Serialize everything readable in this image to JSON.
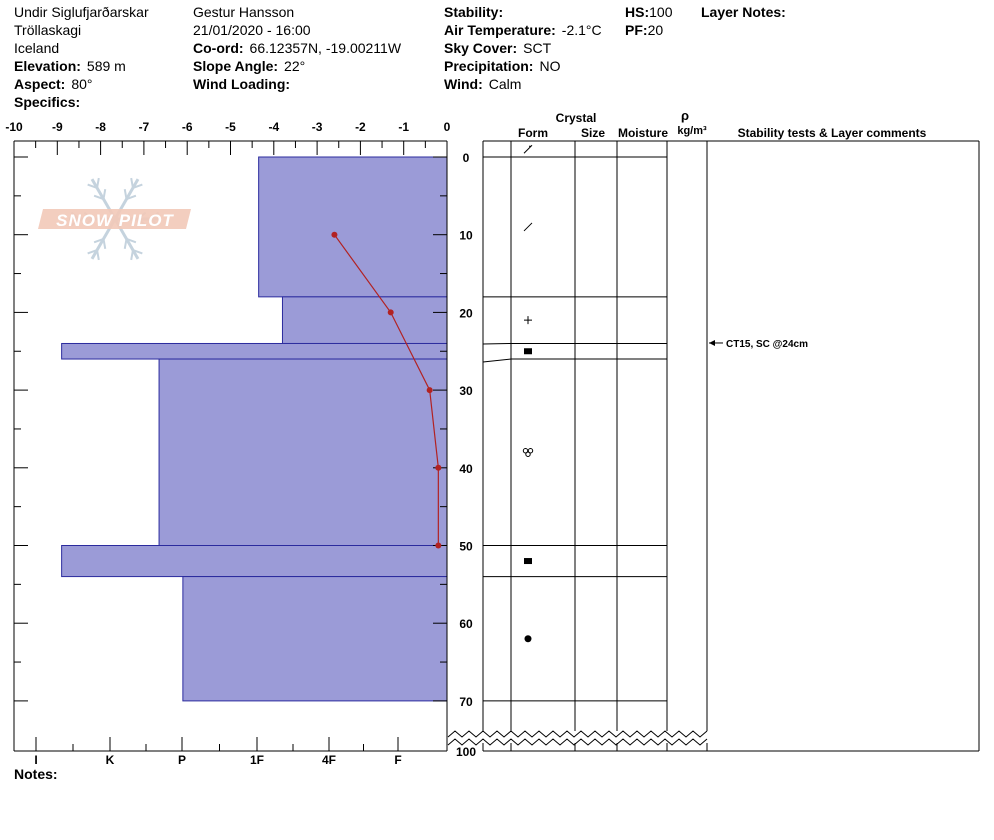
{
  "header": {
    "location": "Undir Siglufjarðarskar",
    "region": "Tröllaskagi",
    "country": "Iceland",
    "elevation_label": "Elevation:",
    "elevation": "589 m",
    "aspect_label": "Aspect:",
    "aspect": "80°",
    "specifics_label": "Specifics:",
    "observer": "Gestur Hansson",
    "datetime": "21/01/2020 - 16:00",
    "coord_label": "Co-ord:",
    "coord": "66.12357N, -19.00211W",
    "slope_label": "Slope Angle:",
    "slope": "22°",
    "wind_loading_label": "Wind Loading:",
    "stability_label": "Stability:",
    "air_temp_label": "Air Temperature:",
    "air_temp": "-2.1°C",
    "sky_label": "Sky Cover:",
    "sky": "SCT",
    "precip_label": "Precipitation:",
    "precip": "NO",
    "wind_label": "Wind:",
    "wind": "Calm",
    "hs_label": "HS:",
    "hs": "100",
    "pf_label": "PF:",
    "pf": "20",
    "layer_notes_label": "Layer Notes:"
  },
  "notes_label": "Notes:",
  "logo_text": "SNOW PILOT",
  "columns": {
    "crystal": "Crystal",
    "form": "Form",
    "size": "Size",
    "moisture": "Moisture",
    "rho": "ρ",
    "density_unit": "kg/m³",
    "comments": "Stability tests & Layer comments"
  },
  "colors": {
    "hardness_fill": "#9b9bd7",
    "hardness_stroke": "#2b2b9e",
    "temp_line": "#b22222"
  },
  "chart_data": {
    "type": "snow-profile",
    "depth_axis": {
      "range": [
        0,
        100
      ],
      "ticks": [
        0,
        10,
        20,
        30,
        40,
        50,
        60,
        70,
        100
      ],
      "direction": "down"
    },
    "temp_axis": {
      "range": [
        -10,
        0
      ],
      "ticks": [
        -10,
        -9,
        -8,
        -7,
        -6,
        -5,
        -4,
        -3,
        -2,
        -1,
        0
      ]
    },
    "hardness_axis": {
      "labels": [
        "I",
        "K",
        "P",
        "1F",
        "4F",
        "F"
      ]
    },
    "hardness_layers": [
      {
        "top": 0,
        "bottom": 18,
        "temp_equiv": -4.35
      },
      {
        "top": 18,
        "bottom": 24,
        "temp_equiv": -3.8
      },
      {
        "top": 24,
        "bottom": 26,
        "temp_equiv": -8.9
      },
      {
        "top": 26,
        "bottom": 50,
        "temp_equiv": -6.65
      },
      {
        "top": 50,
        "bottom": 54,
        "temp_equiv": -8.9
      },
      {
        "top": 54,
        "bottom": 70,
        "temp_equiv": -6.1
      }
    ],
    "temperature_profile": [
      {
        "depth": 10,
        "temp": -2.6
      },
      {
        "depth": 20,
        "temp": -1.3
      },
      {
        "depth": 30,
        "temp": -0.4
      },
      {
        "depth": 40,
        "temp": -0.2
      },
      {
        "depth": 50,
        "temp": -0.2
      }
    ],
    "layer_boundaries": [
      0,
      18,
      24,
      26,
      50,
      54,
      70
    ],
    "grain_forms": [
      {
        "depth": -1,
        "symbol": "decomposing"
      },
      {
        "depth": 9,
        "symbol": "precip-particles"
      },
      {
        "depth": 21,
        "symbol": "plus"
      },
      {
        "depth": 25,
        "symbol": "faceted"
      },
      {
        "depth": 38,
        "symbol": "rounded-cluster"
      },
      {
        "depth": 52,
        "symbol": "faceted"
      },
      {
        "depth": 62,
        "symbol": "round"
      }
    ],
    "stability_tests": [
      {
        "depth": 24,
        "text": "CT15, SC @24cm"
      }
    ]
  }
}
